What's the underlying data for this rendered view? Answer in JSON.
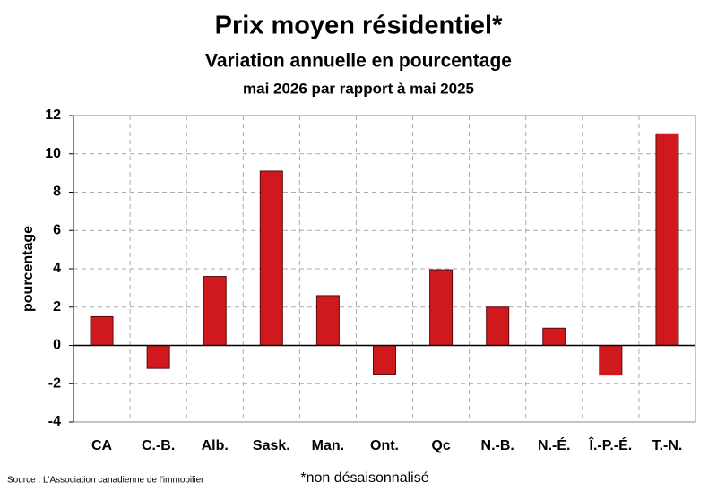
{
  "chart_data": {
    "type": "bar",
    "title": "Prix moyen résidentiel*",
    "subtitle": "Variation annuelle en pourcentage",
    "subtitle2": "mai 2026 par rapport à mai 2025",
    "y_label": "pourcentage",
    "source": "Source : L'Association canadienne de l'immobilier",
    "note": "*non désaisonnalisé",
    "categories": [
      "CA",
      "C.-B.",
      "Alb.",
      "Sask.",
      "Man.",
      "Ont.",
      "Qc",
      "N.-B.",
      "N.-É.",
      "Î.-P.-É.",
      "T.-N."
    ],
    "values": [
      1.5,
      -1.2,
      3.6,
      9.1,
      2.6,
      -1.5,
      3.95,
      2.0,
      0.9,
      -1.55,
      11.05
    ],
    "color": "#d0191c",
    "ylim": [
      -4,
      12
    ],
    "yticks": [
      -4,
      -2,
      0,
      2,
      4,
      6,
      8,
      10,
      12
    ],
    "grid": true
  }
}
